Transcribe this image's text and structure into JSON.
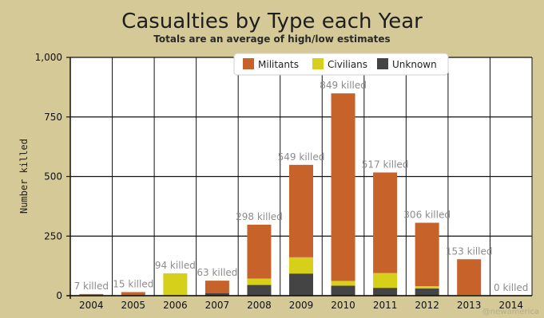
{
  "chart_data": {
    "type": "bar",
    "stacked": true,
    "title": "Casualties by Type each Year",
    "subtitle": "Totals are an average of high/low estimates",
    "ylabel": "Number killed",
    "xlabel": "",
    "ylim": [
      0,
      1000
    ],
    "yticks": [
      0,
      250,
      500,
      750,
      1000
    ],
    "ytick_labels": [
      "0",
      "250",
      "500",
      "750",
      "1,000"
    ],
    "grid": true,
    "legend_position": "top-right",
    "categories": [
      "2004",
      "2005",
      "2006",
      "2007",
      "2008",
      "2009",
      "2010",
      "2011",
      "2012",
      "2013",
      "2014"
    ],
    "series": [
      {
        "name": "Unknown",
        "color": "#444444",
        "values": [
          0,
          0,
          0,
          10,
          45,
          93,
          42,
          33,
          30,
          0,
          0
        ]
      },
      {
        "name": "Civilians",
        "color": "#d7d01a",
        "values": [
          0,
          0,
          94,
          0,
          27,
          68,
          20,
          62,
          10,
          3,
          0
        ]
      },
      {
        "name": "Militants",
        "color": "#c7622a",
        "values": [
          7,
          15,
          0,
          53,
          226,
          388,
          787,
          422,
          266,
          150,
          0
        ]
      }
    ],
    "legend_order": [
      "Militants",
      "Civilians",
      "Unknown"
    ],
    "data_labels": [
      "7 killed",
      "15 killed",
      "94 killed",
      "63 killed",
      "298 killed",
      "549 killed",
      "849 killed",
      "517 killed",
      "306 killed",
      "153 killed",
      "0 killed"
    ]
  },
  "credit": "@newamerica"
}
